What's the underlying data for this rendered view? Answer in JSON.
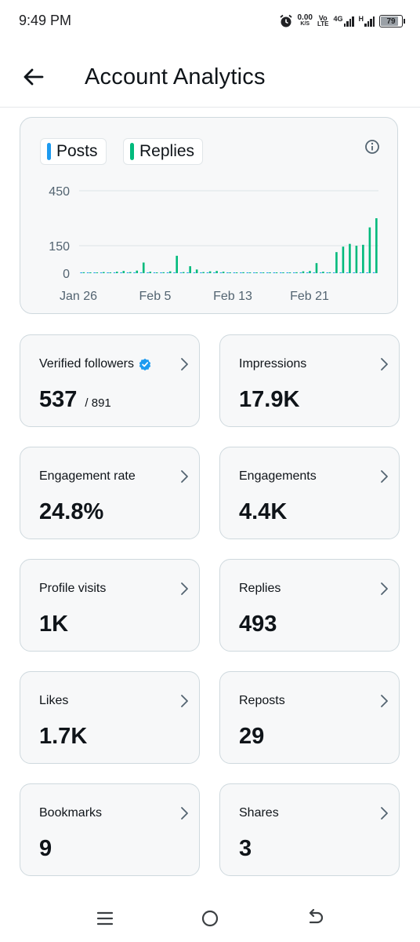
{
  "status_bar": {
    "time": "9:49 PM",
    "net_speed": "0.00",
    "net_unit": "K/S",
    "volte_top": "Vo",
    "volte_bottom": "LTE",
    "net_type_1": "4G",
    "net_type_2": "H",
    "battery": "79",
    "battery_level": 0.79,
    "icons": [
      "alarm-icon",
      "signal-icon",
      "battery-icon"
    ]
  },
  "header": {
    "title": "Account Analytics",
    "back_icon": "arrow-left-icon"
  },
  "chart_legend": {
    "posts_label": "Posts",
    "replies_label": "Replies",
    "posts_color": "#1d9bf0",
    "replies_color": "#00ba7c",
    "info_icon": "info-icon"
  },
  "chart_data": {
    "type": "bar",
    "title": "",
    "xlabel": "",
    "ylabel": "",
    "ylim": [
      0,
      450
    ],
    "yticks": [
      0,
      150,
      450
    ],
    "xtick_labels": [
      "Jan 26",
      "Feb 5",
      "Feb 13",
      "Feb 21"
    ],
    "grid": true,
    "series": [
      {
        "name": "Posts",
        "color": "#1d9bf0",
        "values": [
          2,
          1,
          1,
          2,
          1,
          2,
          2,
          3,
          2,
          2,
          3,
          4,
          3,
          3,
          2,
          2,
          1,
          2,
          2,
          3,
          2,
          2,
          2,
          2,
          2,
          1,
          1,
          1,
          1,
          1,
          1,
          1,
          1,
          2,
          2,
          3,
          3,
          2,
          3,
          2,
          3,
          4,
          3,
          4,
          5
        ]
      },
      {
        "name": "Replies",
        "color": "#00ba7c",
        "values": [
          5,
          3,
          4,
          6,
          3,
          8,
          12,
          6,
          14,
          58,
          8,
          4,
          5,
          10,
          95,
          6,
          38,
          20,
          6,
          10,
          12,
          8,
          4,
          3,
          5,
          2,
          4,
          1,
          2,
          1,
          3,
          4,
          5,
          10,
          12,
          55,
          8,
          5,
          115,
          145,
          160,
          150,
          155,
          250,
          300
        ]
      }
    ]
  },
  "stats": [
    {
      "label": "Verified followers",
      "value": "537",
      "sub": "/ 891",
      "verified": true,
      "icon": "verified-badge-icon"
    },
    {
      "label": "Impressions",
      "value": "17.9K"
    },
    {
      "label": "Engagement rate",
      "value": "24.8%"
    },
    {
      "label": "Engagements",
      "value": "4.4K"
    },
    {
      "label": "Profile visits",
      "value": "1K"
    },
    {
      "label": "Replies",
      "value": "493"
    },
    {
      "label": "Likes",
      "value": "1.7K"
    },
    {
      "label": "Reposts",
      "value": "29"
    },
    {
      "label": "Bookmarks",
      "value": "9"
    },
    {
      "label": "Shares",
      "value": "3"
    }
  ],
  "nav": {
    "icons": [
      "menu-icon",
      "home-circle-icon",
      "back-icon"
    ]
  }
}
